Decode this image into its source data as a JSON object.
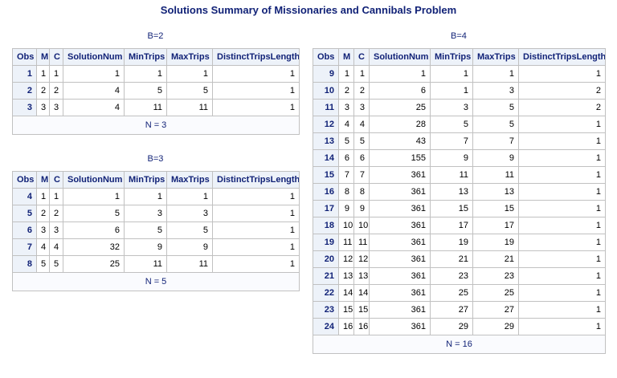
{
  "title": "Solutions Summary of Missionaries and Cannibals Problem",
  "tables": [
    {
      "label": "B=2",
      "columns": [
        "Obs",
        "M",
        "C",
        "SolutionNum",
        "MinTrips",
        "MaxTrips",
        "DistinctTripsLength"
      ],
      "rows": [
        [
          1,
          1,
          1,
          1,
          1,
          1,
          1
        ],
        [
          2,
          2,
          2,
          4,
          5,
          5,
          1
        ],
        [
          3,
          3,
          3,
          4,
          11,
          11,
          1
        ]
      ],
      "footer": "N = 3"
    },
    {
      "label": "B=3",
      "columns": [
        "Obs",
        "M",
        "C",
        "SolutionNum",
        "MinTrips",
        "MaxTrips",
        "DistinctTripsLength"
      ],
      "rows": [
        [
          4,
          1,
          1,
          1,
          1,
          1,
          1
        ],
        [
          5,
          2,
          2,
          5,
          3,
          3,
          1
        ],
        [
          6,
          3,
          3,
          6,
          5,
          5,
          1
        ],
        [
          7,
          4,
          4,
          32,
          9,
          9,
          1
        ],
        [
          8,
          5,
          5,
          25,
          11,
          11,
          1
        ]
      ],
      "footer": "N = 5"
    },
    {
      "label": "B=4",
      "columns": [
        "Obs",
        "M",
        "C",
        "SolutionNum",
        "MinTrips",
        "MaxTrips",
        "DistinctTripsLength"
      ],
      "rows": [
        [
          9,
          1,
          1,
          1,
          1,
          1,
          1
        ],
        [
          10,
          2,
          2,
          6,
          1,
          3,
          2
        ],
        [
          11,
          3,
          3,
          25,
          3,
          5,
          2
        ],
        [
          12,
          4,
          4,
          28,
          5,
          5,
          1
        ],
        [
          13,
          5,
          5,
          43,
          7,
          7,
          1
        ],
        [
          14,
          6,
          6,
          155,
          9,
          9,
          1
        ],
        [
          15,
          7,
          7,
          361,
          11,
          11,
          1
        ],
        [
          16,
          8,
          8,
          361,
          13,
          13,
          1
        ],
        [
          17,
          9,
          9,
          361,
          15,
          15,
          1
        ],
        [
          18,
          10,
          10,
          361,
          17,
          17,
          1
        ],
        [
          19,
          11,
          11,
          361,
          19,
          19,
          1
        ],
        [
          20,
          12,
          12,
          361,
          21,
          21,
          1
        ],
        [
          21,
          13,
          13,
          361,
          23,
          23,
          1
        ],
        [
          22,
          14,
          14,
          361,
          25,
          25,
          1
        ],
        [
          23,
          15,
          15,
          361,
          27,
          27,
          1
        ],
        [
          24,
          16,
          16,
          361,
          29,
          29,
          1
        ]
      ],
      "footer": "N = 16"
    }
  ]
}
